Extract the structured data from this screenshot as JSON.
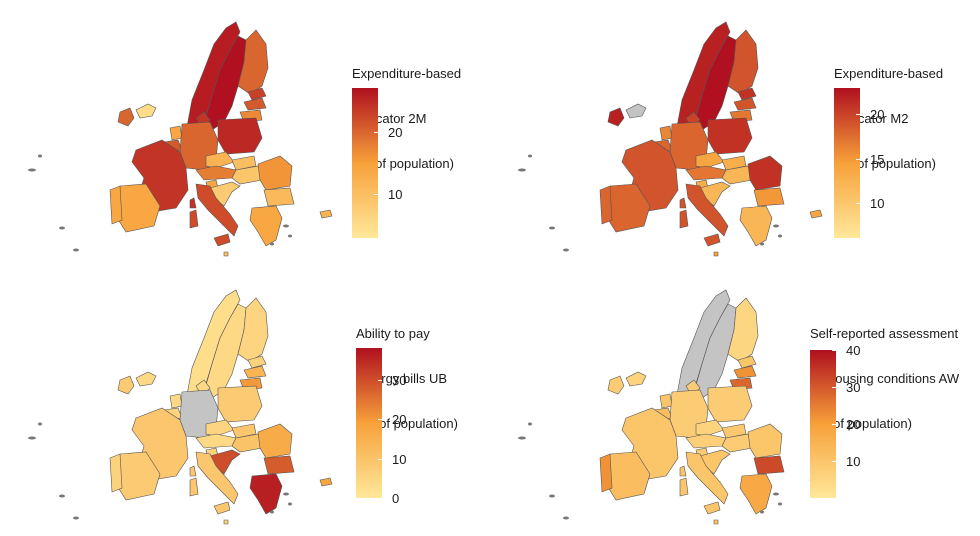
{
  "panels": [
    {
      "legend_title": [
        "Expenditure-based",
        " indicator 2M",
        " (% of population)"
      ],
      "scale": {
        "min": 3,
        "max": 27,
        "low_color": "#ffe89a",
        "mid_color": "#f7a13a",
        "high_color": "#b0101f"
      },
      "ticks": [
        "10",
        "20"
      ],
      "tick_values": [
        10,
        20
      ]
    },
    {
      "legend_title": [
        "Expenditure-based",
        " indicator M2",
        " (% of population)"
      ],
      "scale": {
        "min": 6,
        "max": 23,
        "low_color": "#ffe89a",
        "mid_color": "#f7a13a",
        "high_color": "#b0101f"
      },
      "ticks": [
        "10",
        "15",
        "20"
      ],
      "tick_values": [
        10,
        15,
        20
      ]
    },
    {
      "legend_title": [
        "Ability to pay",
        " energy bills UB",
        " (% of population)"
      ],
      "scale": {
        "min": 0,
        "max": 38,
        "low_color": "#ffe89a",
        "mid_color": "#f7a13a",
        "high_color": "#b0101f"
      },
      "ticks": [
        "0",
        "10",
        "20",
        "30"
      ],
      "tick_values": [
        0,
        10,
        20,
        30
      ]
    },
    {
      "legend_title": [
        "Self-reported assessment",
        " of housing conditions AW",
        " (% of population)"
      ],
      "scale": {
        "min": 0,
        "max": 40,
        "low_color": "#ffe89a",
        "mid_color": "#f7a13a",
        "high_color": "#b0101f"
      },
      "ticks": [
        "10",
        "20",
        "30",
        "40"
      ],
      "tick_values": [
        10,
        20,
        30,
        40
      ]
    }
  ],
  "no_data_color": "#c4c4c4",
  "border_color": "#555555"
}
